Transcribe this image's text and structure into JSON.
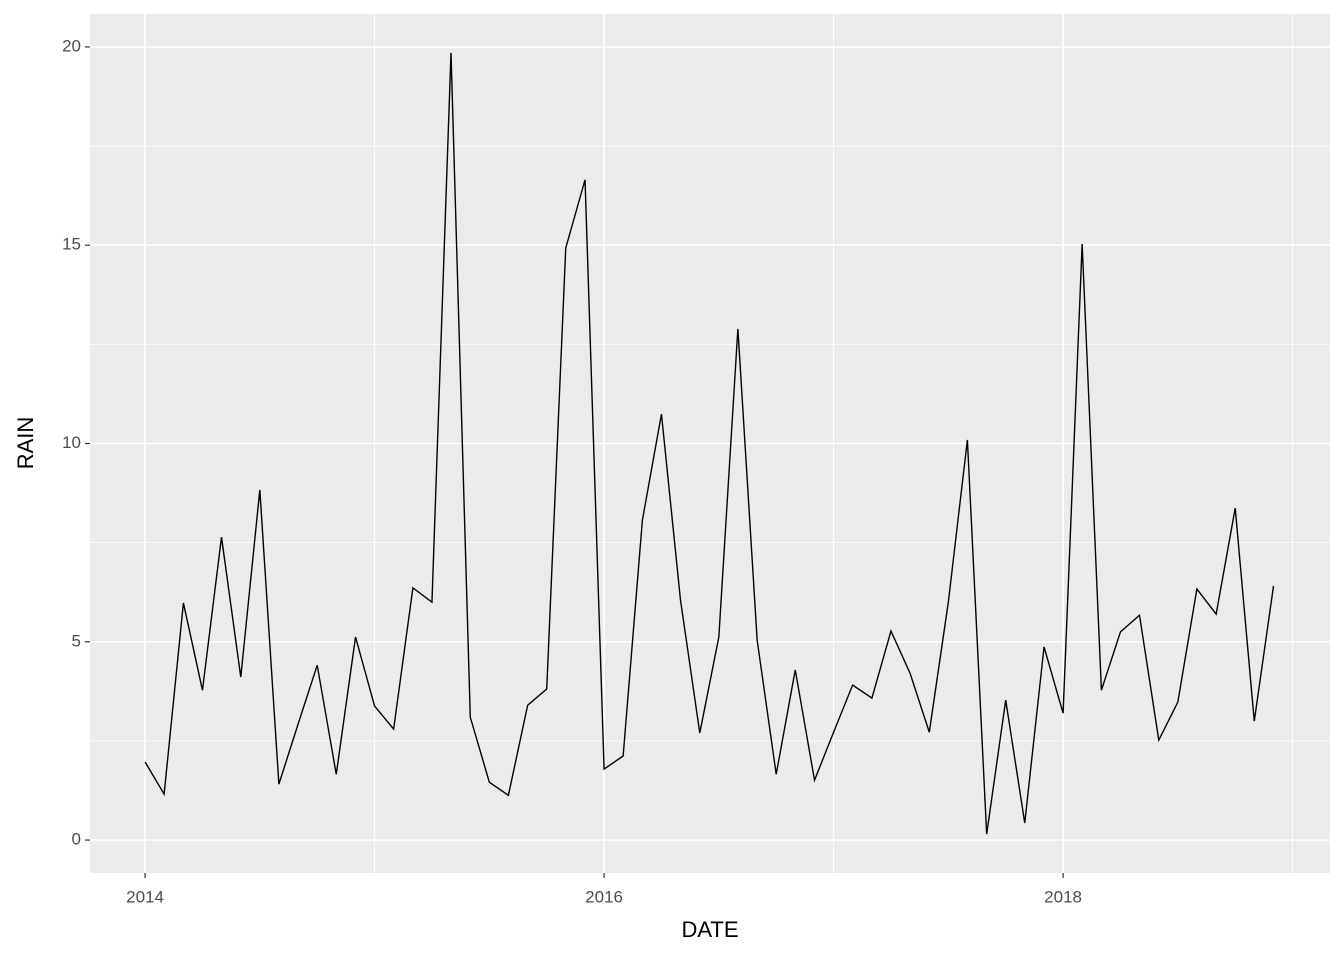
{
  "chart_data": {
    "type": "line",
    "x_label": "DATE",
    "y_label": "RAIN",
    "x": [
      2014,
      2014.083,
      2014.167,
      2014.25,
      2014.333,
      2014.417,
      2014.5,
      2014.583,
      2014.667,
      2014.75,
      2014.833,
      2014.917,
      2015,
      2015.083,
      2015.167,
      2015.25,
      2015.333,
      2015.417,
      2015.5,
      2015.583,
      2015.667,
      2015.75,
      2015.833,
      2015.917,
      2016,
      2016.083,
      2016.167,
      2016.25,
      2016.333,
      2016.417,
      2016.5,
      2016.583,
      2016.667,
      2016.75,
      2016.833,
      2016.917,
      2017,
      2017.083,
      2017.167,
      2017.25,
      2017.333,
      2017.417,
      2017.5,
      2017.583,
      2017.667,
      2017.75,
      2017.833,
      2017.917,
      2018,
      2018.083,
      2018.167,
      2018.25,
      2018.333,
      2018.417,
      2018.5,
      2018.583,
      2018.667,
      2018.75,
      2018.833,
      2018.917
    ],
    "series": [
      {
        "color": "#000000",
        "values": [
          1.97,
          1.16,
          5.98,
          3.78,
          7.64,
          4.11,
          8.83,
          1.41,
          2.93,
          4.41,
          1.66,
          5.12,
          3.38,
          2.8,
          6.36,
          6.0,
          19.85,
          3.1,
          1.46,
          1.13,
          3.4,
          3.81,
          14.93,
          16.65,
          1.79,
          2.12,
          8.07,
          10.74,
          6.05,
          2.7,
          5.12,
          12.89,
          5.04,
          1.66,
          4.29,
          1.51,
          2.72,
          3.91,
          3.58,
          5.27,
          4.21,
          2.72,
          6.0,
          10.09,
          0.15,
          3.53,
          0.43,
          4.87,
          3.2,
          15.03,
          3.78,
          5.25,
          5.67,
          2.52,
          3.48,
          6.33,
          5.7,
          8.37,
          3.0,
          6.41
        ]
      }
    ],
    "xlim": [
      2013.76,
      2019.163
    ],
    "ylim": [
      -0.83,
      20.83
    ],
    "xticks": [
      2014,
      2016,
      2018
    ],
    "yticks": [
      0,
      5,
      10,
      15,
      20
    ],
    "xminorticks": [
      2015,
      2017,
      2019
    ],
    "yminorticks": [
      2.5,
      7.5,
      12.5,
      17.5
    ],
    "grid": true
  }
}
